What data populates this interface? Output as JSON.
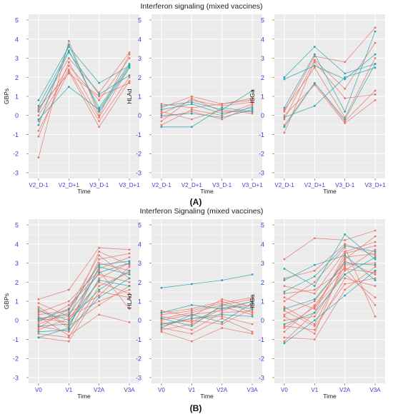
{
  "panel_a": {
    "title": "Interferon signaling (mixed vaccines)",
    "label": "(A)"
  },
  "panel_b": {
    "title": "Interferon Signaling (mixed vaccines)",
    "label": "(B)"
  },
  "colors": {
    "panel_bg": "#ebebeb",
    "grid": "#ffffff",
    "salmon": "#e8766b",
    "teal": "#2aa6ad",
    "tick_label": "#3e3ecc"
  },
  "chart_data": [
    {
      "panel": "A",
      "type": "line",
      "ylabel": "GBPs",
      "xlabel": "Time",
      "categories": [
        "V2_D-1",
        "V2_D+1",
        "V3_D-1",
        "V3_D+1"
      ],
      "yticks": [
        -3,
        -2,
        -1,
        0,
        1,
        2,
        3,
        4,
        5
      ],
      "ylim": [
        -3.3,
        5.3
      ],
      "grid": true,
      "series": [
        {
          "group": "teal",
          "values": [
            0.8,
            3.6,
            1.7,
            2.6
          ]
        },
        {
          "group": "teal",
          "values": [
            0.5,
            3.4,
            0.4,
            2.7
          ]
        },
        {
          "group": "teal",
          "values": [
            0.2,
            3.3,
            1.1,
            2.1
          ]
        },
        {
          "group": "teal",
          "values": [
            -0.2,
            1.5,
            0.3,
            2.6
          ]
        },
        {
          "group": "teal",
          "values": [
            -0.5,
            3.7,
            0.2,
            2.5
          ]
        },
        {
          "group": "salmon",
          "values": [
            0.3,
            3.0,
            1.2,
            3.3
          ]
        },
        {
          "group": "salmon",
          "values": [
            0.0,
            2.6,
            0.8,
            3.0
          ]
        },
        {
          "group": "salmon",
          "values": [
            -0.3,
            2.4,
            -0.3,
            2.0
          ]
        },
        {
          "group": "salmon",
          "values": [
            -0.8,
            2.3,
            -0.6,
            1.8
          ]
        },
        {
          "group": "salmon",
          "values": [
            -1.1,
            2.8,
            -0.1,
            2.5
          ]
        },
        {
          "group": "salmon",
          "values": [
            -2.2,
            3.9,
            0.0,
            3.2
          ]
        },
        {
          "group": "salmon",
          "values": [
            0.4,
            2.2,
            1.0,
            1.7
          ]
        }
      ]
    },
    {
      "panel": "A",
      "type": "line",
      "ylabel": "HLAd",
      "xlabel": "Time",
      "categories": [
        "V2_D-1",
        "V2_D+1",
        "V3_D-1",
        "V3_D+1"
      ],
      "yticks": [
        -3,
        -2,
        -1,
        0,
        1,
        2,
        3,
        4,
        5
      ],
      "ylim": [
        -3.3,
        5.3
      ],
      "grid": true,
      "series": [
        {
          "group": "teal",
          "values": [
            0.5,
            0.7,
            0.3,
            1.3
          ]
        },
        {
          "group": "teal",
          "values": [
            0.3,
            0.6,
            0.1,
            0.4
          ]
        },
        {
          "group": "teal",
          "values": [
            -0.6,
            -0.6,
            0.4,
            0.2
          ]
        },
        {
          "group": "teal",
          "values": [
            0.0,
            0.1,
            -0.1,
            0.3
          ]
        },
        {
          "group": "salmon",
          "values": [
            0.4,
            1.0,
            0.6,
            0.9
          ]
        },
        {
          "group": "salmon",
          "values": [
            0.1,
            0.8,
            0.5,
            0.7
          ]
        },
        {
          "group": "salmon",
          "values": [
            -0.3,
            0.9,
            0.2,
            0.2
          ]
        },
        {
          "group": "salmon",
          "values": [
            -0.5,
            0.3,
            0.0,
            0.6
          ]
        },
        {
          "group": "salmon",
          "values": [
            0.2,
            -0.2,
            0.3,
            0.1
          ]
        },
        {
          "group": "salmon",
          "values": [
            -0.1,
            0.2,
            -0.2,
            0.5
          ]
        },
        {
          "group": "salmon",
          "values": [
            0.6,
            0.4,
            0.6,
            0.8
          ]
        }
      ]
    },
    {
      "panel": "A",
      "type": "line",
      "ylabel": "ISGa",
      "xlabel": "Time",
      "categories": [
        "V2_D-1",
        "V2_D+1",
        "V3_D-1",
        "V3_D+1"
      ],
      "yticks": [
        -3,
        -2,
        -1,
        0,
        1,
        2,
        3,
        4,
        5
      ],
      "ylim": [
        -3.3,
        5.3
      ],
      "grid": true,
      "series": [
        {
          "group": "teal",
          "values": [
            2.0,
            3.6,
            2.2,
            2.7
          ]
        },
        {
          "group": "teal",
          "values": [
            1.9,
            2.6,
            1.9,
            3.2
          ]
        },
        {
          "group": "teal",
          "values": [
            0.4,
            3.2,
            0.2,
            4.4
          ]
        },
        {
          "group": "teal",
          "values": [
            -0.1,
            0.5,
            2.0,
            2.5
          ]
        },
        {
          "group": "teal",
          "values": [
            -0.6,
            1.7,
            -0.2,
            2.7
          ]
        },
        {
          "group": "salmon",
          "values": [
            0.2,
            3.1,
            2.8,
            4.6
          ]
        },
        {
          "group": "salmon",
          "values": [
            -0.2,
            2.9,
            1.4,
            3.8
          ]
        },
        {
          "group": "salmon",
          "values": [
            -0.5,
            1.7,
            -0.3,
            1.3
          ]
        },
        {
          "group": "salmon",
          "values": [
            -0.9,
            2.8,
            0.9,
            1.1
          ]
        },
        {
          "group": "salmon",
          "values": [
            0.0,
            1.6,
            -0.4,
            0.8
          ]
        },
        {
          "group": "salmon",
          "values": [
            0.3,
            2.5,
            -0.1,
            3.0
          ]
        }
      ]
    },
    {
      "panel": "B",
      "type": "line",
      "ylabel": "GBPs",
      "xlabel": "Time",
      "categories": [
        "V0",
        "V1",
        "V2A",
        "V3A"
      ],
      "yticks": [
        -3,
        -2,
        -1,
        0,
        1,
        2,
        3,
        4,
        5
      ],
      "ylim": [
        -3.3,
        5.3
      ],
      "grid": true,
      "series": [
        {
          "group": "teal",
          "values": [
            -0.9,
            -0.4,
            2.8,
            2.4
          ]
        },
        {
          "group": "teal",
          "values": [
            0.1,
            0.3,
            2.5,
            3.0
          ]
        },
        {
          "group": "teal",
          "values": [
            -0.3,
            -0.2,
            2.1,
            1.8
          ]
        },
        {
          "group": "teal",
          "values": [
            0.5,
            0.0,
            1.6,
            2.6
          ]
        },
        {
          "group": "teal",
          "values": [
            0.0,
            0.6,
            2.9,
            3.1
          ]
        },
        {
          "group": "teal",
          "values": [
            -0.6,
            -0.5,
            1.2,
            2.2
          ]
        },
        {
          "group": "salmon",
          "values": [
            1.1,
            1.6,
            3.8,
            3.7
          ]
        },
        {
          "group": "salmon",
          "values": [
            0.9,
            0.2,
            3.6,
            2.9
          ]
        },
        {
          "group": "salmon",
          "values": [
            0.6,
            -0.4,
            3.2,
            3.5
          ]
        },
        {
          "group": "salmon",
          "values": [
            0.3,
            0.5,
            3.0,
            2.6
          ]
        },
        {
          "group": "salmon",
          "values": [
            0.1,
            -0.1,
            2.7,
            3.3
          ]
        },
        {
          "group": "salmon",
          "values": [
            -0.1,
            0.8,
            2.4,
            2.0
          ]
        },
        {
          "group": "salmon",
          "values": [
            -0.3,
            -0.6,
            2.2,
            3.0
          ]
        },
        {
          "group": "salmon",
          "values": [
            -0.5,
            0.1,
            2.0,
            1.4
          ]
        },
        {
          "group": "salmon",
          "values": [
            -0.7,
            -0.9,
            1.8,
            2.5
          ]
        },
        {
          "group": "salmon",
          "values": [
            -0.9,
            -1.1,
            1.5,
            1.2
          ]
        },
        {
          "group": "salmon",
          "values": [
            0.4,
            1.0,
            2.6,
            0.6
          ]
        },
        {
          "group": "salmon",
          "values": [
            -0.2,
            0.4,
            1.3,
            2.8
          ]
        },
        {
          "group": "salmon",
          "values": [
            0.7,
            -0.3,
            0.8,
            1.8
          ]
        },
        {
          "group": "salmon",
          "values": [
            -0.4,
            0.6,
            3.4,
            2.2
          ]
        },
        {
          "group": "salmon",
          "values": [
            0.2,
            -0.8,
            0.3,
            -0.1
          ]
        },
        {
          "group": "salmon",
          "values": [
            0.0,
            0.2,
            1.0,
            1.6
          ]
        }
      ]
    },
    {
      "panel": "B",
      "type": "line",
      "ylabel": "HLAd",
      "xlabel": "Time",
      "categories": [
        "V0",
        "V1",
        "V2A",
        "V3A"
      ],
      "yticks": [
        -3,
        -2,
        -1,
        0,
        1,
        2,
        3,
        4,
        5
      ],
      "ylim": [
        -3.3,
        5.3
      ],
      "grid": true,
      "series": [
        {
          "group": "teal",
          "values": [
            1.7,
            1.9,
            2.1,
            2.4
          ]
        },
        {
          "group": "teal",
          "values": [
            0.4,
            0.8,
            0.6,
            1.0
          ]
        },
        {
          "group": "teal",
          "values": [
            -0.2,
            0.1,
            0.3,
            0.2
          ]
        },
        {
          "group": "teal",
          "values": [
            0.1,
            -0.3,
            0.8,
            0.6
          ]
        },
        {
          "group": "teal",
          "values": [
            -0.4,
            0.3,
            -0.1,
            0.9
          ]
        },
        {
          "group": "salmon",
          "values": [
            0.5,
            0.2,
            1.1,
            0.7
          ]
        },
        {
          "group": "salmon",
          "values": [
            0.3,
            0.5,
            0.9,
            1.2
          ]
        },
        {
          "group": "salmon",
          "values": [
            0.2,
            -0.1,
            0.7,
            0.3
          ]
        },
        {
          "group": "salmon",
          "values": [
            0.0,
            0.3,
            0.5,
            1.0
          ]
        },
        {
          "group": "salmon",
          "values": [
            -0.1,
            -0.5,
            0.4,
            0.5
          ]
        },
        {
          "group": "salmon",
          "values": [
            -0.3,
            0.1,
            0.2,
            -0.2
          ]
        },
        {
          "group": "salmon",
          "values": [
            -0.5,
            -0.2,
            0.6,
            0.8
          ]
        },
        {
          "group": "salmon",
          "values": [
            -0.6,
            -1.1,
            -0.4,
            -0.7
          ]
        },
        {
          "group": "salmon",
          "values": [
            0.4,
            0.6,
            1.0,
            0.4
          ]
        },
        {
          "group": "salmon",
          "values": [
            -0.2,
            0.0,
            -0.2,
            0.6
          ]
        },
        {
          "group": "salmon",
          "values": [
            0.1,
            0.4,
            0.8,
            1.1
          ]
        },
        {
          "group": "salmon",
          "values": [
            -0.4,
            -0.7,
            0.1,
            -0.6
          ]
        }
      ]
    },
    {
      "panel": "B",
      "type": "line",
      "ylabel": "ISGa",
      "xlabel": "Time",
      "categories": [
        "V0",
        "V1",
        "V2A",
        "V3A"
      ],
      "yticks": [
        -3,
        -2,
        -1,
        0,
        1,
        2,
        3,
        4,
        5
      ],
      "ylim": [
        -3.3,
        5.3
      ],
      "grid": true,
      "series": [
        {
          "group": "teal",
          "values": [
            2.7,
            1.8,
            4.5,
            3.2
          ]
        },
        {
          "group": "teal",
          "values": [
            1.5,
            2.3,
            3.9,
            3.6
          ]
        },
        {
          "group": "teal",
          "values": [
            0.6,
            1.1,
            3.0,
            2.9
          ]
        },
        {
          "group": "teal",
          "values": [
            -0.2,
            0.4,
            2.4,
            3.3
          ]
        },
        {
          "group": "teal",
          "values": [
            -1.2,
            0.0,
            1.3,
            2.6
          ]
        },
        {
          "group": "teal",
          "values": [
            2.1,
            2.9,
            3.4,
            2.1
          ]
        },
        {
          "group": "salmon",
          "values": [
            3.2,
            4.3,
            4.2,
            4.7
          ]
        },
        {
          "group": "salmon",
          "values": [
            1.8,
            1.4,
            3.6,
            4.1
          ]
        },
        {
          "group": "salmon",
          "values": [
            1.2,
            0.6,
            3.3,
            3.5
          ]
        },
        {
          "group": "salmon",
          "values": [
            0.7,
            -0.2,
            2.9,
            3.0
          ]
        },
        {
          "group": "salmon",
          "values": [
            0.3,
            1.0,
            3.1,
            2.4
          ]
        },
        {
          "group": "salmon",
          "values": [
            0.0,
            0.2,
            2.6,
            3.7
          ]
        },
        {
          "group": "salmon",
          "values": [
            -0.3,
            -0.5,
            2.2,
            1.8
          ]
        },
        {
          "group": "salmon",
          "values": [
            -0.6,
            0.8,
            2.8,
            0.8
          ]
        },
        {
          "group": "salmon",
          "values": [
            -0.9,
            -1.0,
            1.6,
            2.8
          ]
        },
        {
          "group": "salmon",
          "values": [
            -1.1,
            0.4,
            3.5,
            3.9
          ]
        },
        {
          "group": "salmon",
          "values": [
            1.0,
            2.0,
            3.8,
            0.2
          ]
        },
        {
          "group": "salmon",
          "values": [
            0.5,
            -0.3,
            1.9,
            2.2
          ]
        },
        {
          "group": "salmon",
          "values": [
            2.2,
            2.6,
            4.0,
            3.4
          ]
        },
        {
          "group": "salmon",
          "values": [
            -0.4,
            0.7,
            2.4,
            1.2
          ]
        },
        {
          "group": "salmon",
          "values": [
            1.4,
            1.6,
            2.7,
            2.5
          ]
        },
        {
          "group": "salmon",
          "values": [
            0.2,
            -0.7,
            3.2,
            4.4
          ]
        }
      ]
    }
  ]
}
